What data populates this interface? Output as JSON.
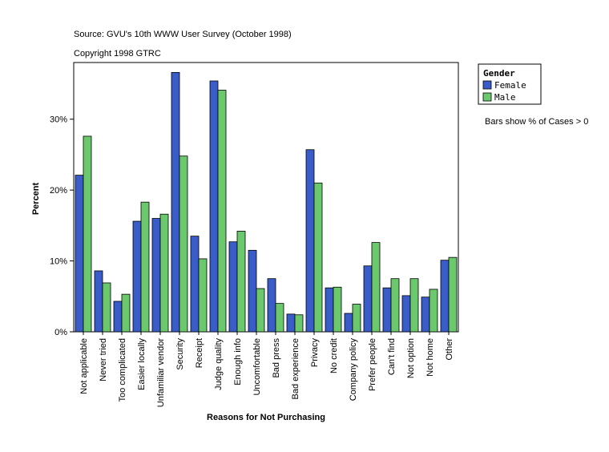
{
  "chart_data": {
    "type": "bar",
    "title": "Source: GVU's 10th WWW User Survey (October 1998)",
    "subtitle": "Copyright 1998 GTRC",
    "xlabel": "Reasons for Not Purchasing",
    "ylabel": "Percent",
    "legend_title": "Gender",
    "note": "Bars show % of Cases > 0",
    "categories": [
      "Not applicable",
      "Never tried",
      "Too complicated",
      "Easier locally",
      "Unfamiliar vendor",
      "Security",
      "Receipt",
      "Judge quality",
      "Enough info",
      "Uncomfortable",
      "Bad press",
      "Bad experience",
      "Privacy",
      "No credit",
      "Company policy",
      "Prefer people",
      "Can't find",
      "Not option",
      "Not home",
      "Other"
    ],
    "series": [
      {
        "name": "Female",
        "color": "#3a5cc8",
        "values": [
          22.1,
          8.6,
          4.3,
          15.6,
          16.0,
          36.6,
          13.5,
          35.4,
          12.7,
          11.5,
          7.5,
          2.5,
          25.7,
          6.2,
          2.6,
          9.3,
          6.2,
          5.1,
          4.9,
          10.1
        ]
      },
      {
        "name": "Male",
        "color": "#6cc86c",
        "values": [
          27.6,
          6.9,
          5.3,
          18.3,
          16.6,
          24.8,
          10.3,
          34.1,
          14.2,
          6.1,
          4.0,
          2.4,
          21.0,
          6.3,
          3.9,
          12.6,
          7.5,
          7.5,
          6.0,
          10.5
        ]
      }
    ],
    "ylim": [
      0,
      38
    ],
    "yticks": [
      {
        "value": 0,
        "label": "0%"
      },
      {
        "value": 10,
        "label": "10%"
      },
      {
        "value": 20,
        "label": "20%"
      },
      {
        "value": 30,
        "label": "30%"
      }
    ],
    "grid": false
  }
}
